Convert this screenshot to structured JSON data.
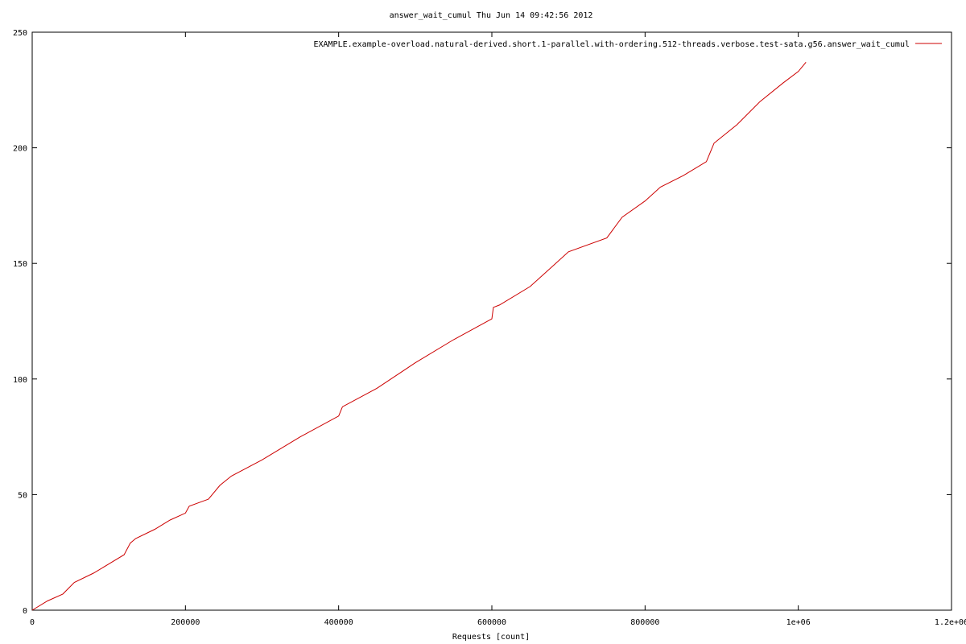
{
  "chart_data": {
    "type": "line",
    "title": "answer_wait_cumul Thu Jun 14 09:42:56 2012",
    "xlabel": "Requests [count]",
    "ylabel": "",
    "xlim": [
      0,
      1200000
    ],
    "ylim": [
      0,
      250
    ],
    "x_ticks": [
      0,
      200000,
      400000,
      600000,
      800000,
      1000000,
      1200000
    ],
    "x_tick_labels": [
      "0",
      "200000",
      "400000",
      "600000",
      "800000",
      "1e+06",
      "1.2e+06"
    ],
    "y_ticks": [
      0,
      50,
      100,
      150,
      200,
      250
    ],
    "y_tick_labels": [
      "0",
      "50",
      "100",
      "150",
      "200",
      "250"
    ],
    "grid": false,
    "legend_position": "top-right",
    "series": [
      {
        "name": "EXAMPLE.example-overload.natural-derived.short.1-parallel.with-ordering.512-threads.verbose.test-sata.g56.answer_wait_cumul",
        "color": "#cc0000",
        "x": [
          0,
          20000,
          40000,
          55000,
          80000,
          100000,
          120000,
          128000,
          135000,
          160000,
          180000,
          200000,
          205000,
          230000,
          245000,
          260000,
          300000,
          350000,
          400000,
          405000,
          450000,
          500000,
          550000,
          600000,
          602000,
          610000,
          650000,
          680000,
          700000,
          750000,
          770000,
          800000,
          820000,
          850000,
          880000,
          890000,
          920000,
          950000,
          980000,
          1000000,
          1010000
        ],
        "y": [
          0,
          4,
          7,
          12,
          16,
          20,
          24,
          29,
          31,
          35,
          39,
          42,
          45,
          48,
          54,
          58,
          65,
          75,
          84,
          88,
          96,
          107,
          117,
          126,
          131,
          132,
          140,
          149,
          155,
          161,
          170,
          177,
          183,
          188,
          194,
          202,
          210,
          220,
          228,
          233,
          237
        ]
      }
    ]
  }
}
